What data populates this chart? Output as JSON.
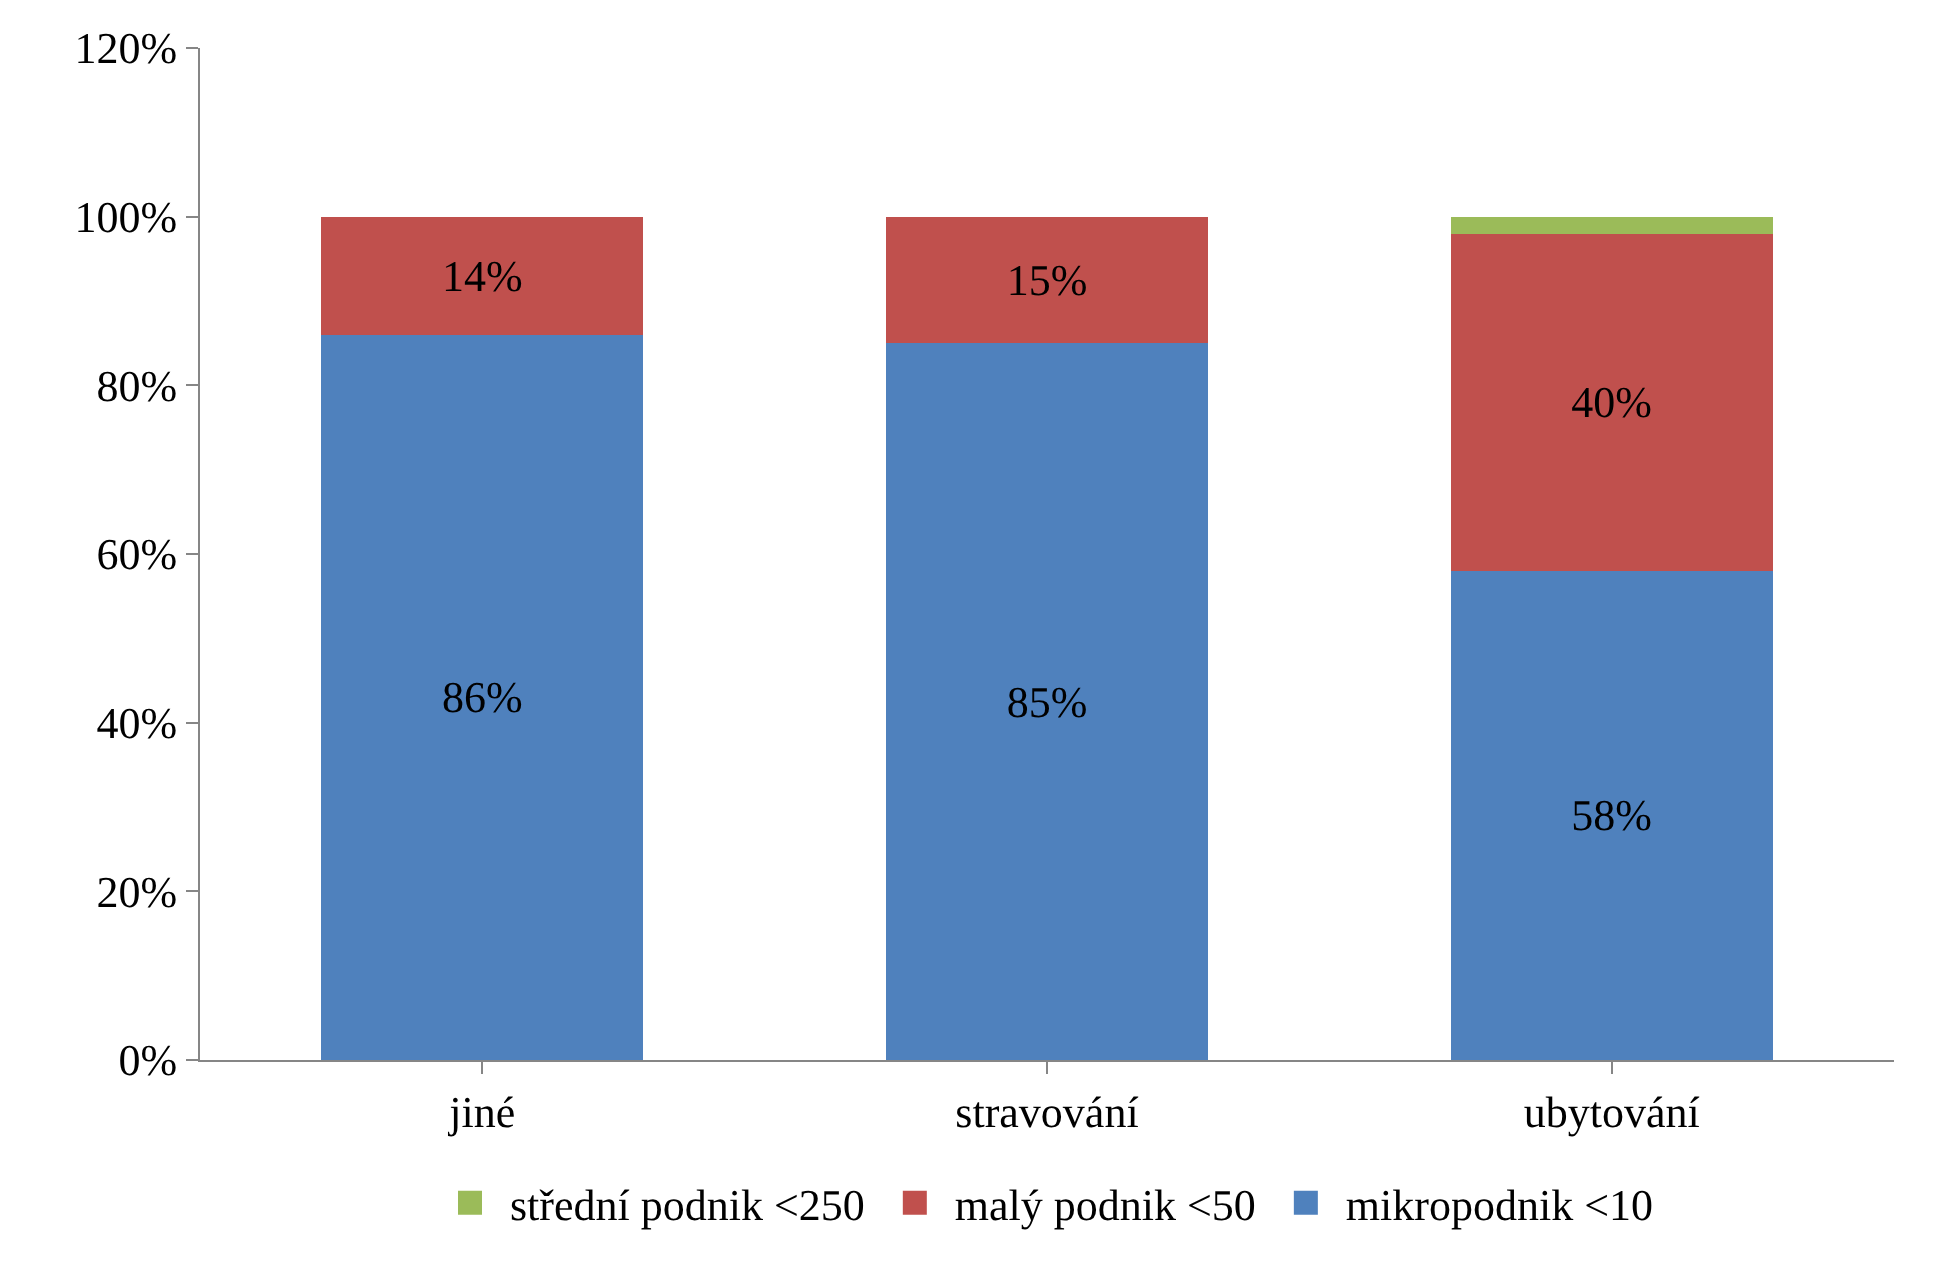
{
  "chart_data": {
    "type": "bar",
    "stacked": true,
    "categories": [
      "jiné",
      "stravování",
      "ubytování"
    ],
    "series": [
      {
        "name": "mikropodnik <10",
        "color": "#4f81bd",
        "values": [
          86,
          85,
          58
        ],
        "value_labels": [
          "86%",
          "85%",
          "58%"
        ]
      },
      {
        "name": "malý podnik <50",
        "color": "#c0504d",
        "values": [
          14,
          15,
          40
        ],
        "value_labels": [
          "14%",
          "15%",
          "40%"
        ]
      },
      {
        "name": "střední podnik <250",
        "color": "#9bbb59",
        "values": [
          null,
          null,
          2
        ],
        "value_labels": [
          null,
          null,
          null
        ]
      }
    ],
    "ylim": [
      0,
      120
    ],
    "yticks": [
      {
        "value": 0,
        "label": "0%"
      },
      {
        "value": 20,
        "label": "20%"
      },
      {
        "value": 40,
        "label": "40%"
      },
      {
        "value": 60,
        "label": "60%"
      },
      {
        "value": 80,
        "label": "80%"
      },
      {
        "value": 100,
        "label": "100%"
      },
      {
        "value": 120,
        "label": "120%"
      }
    ],
    "grid": false,
    "legend": "bottom"
  }
}
